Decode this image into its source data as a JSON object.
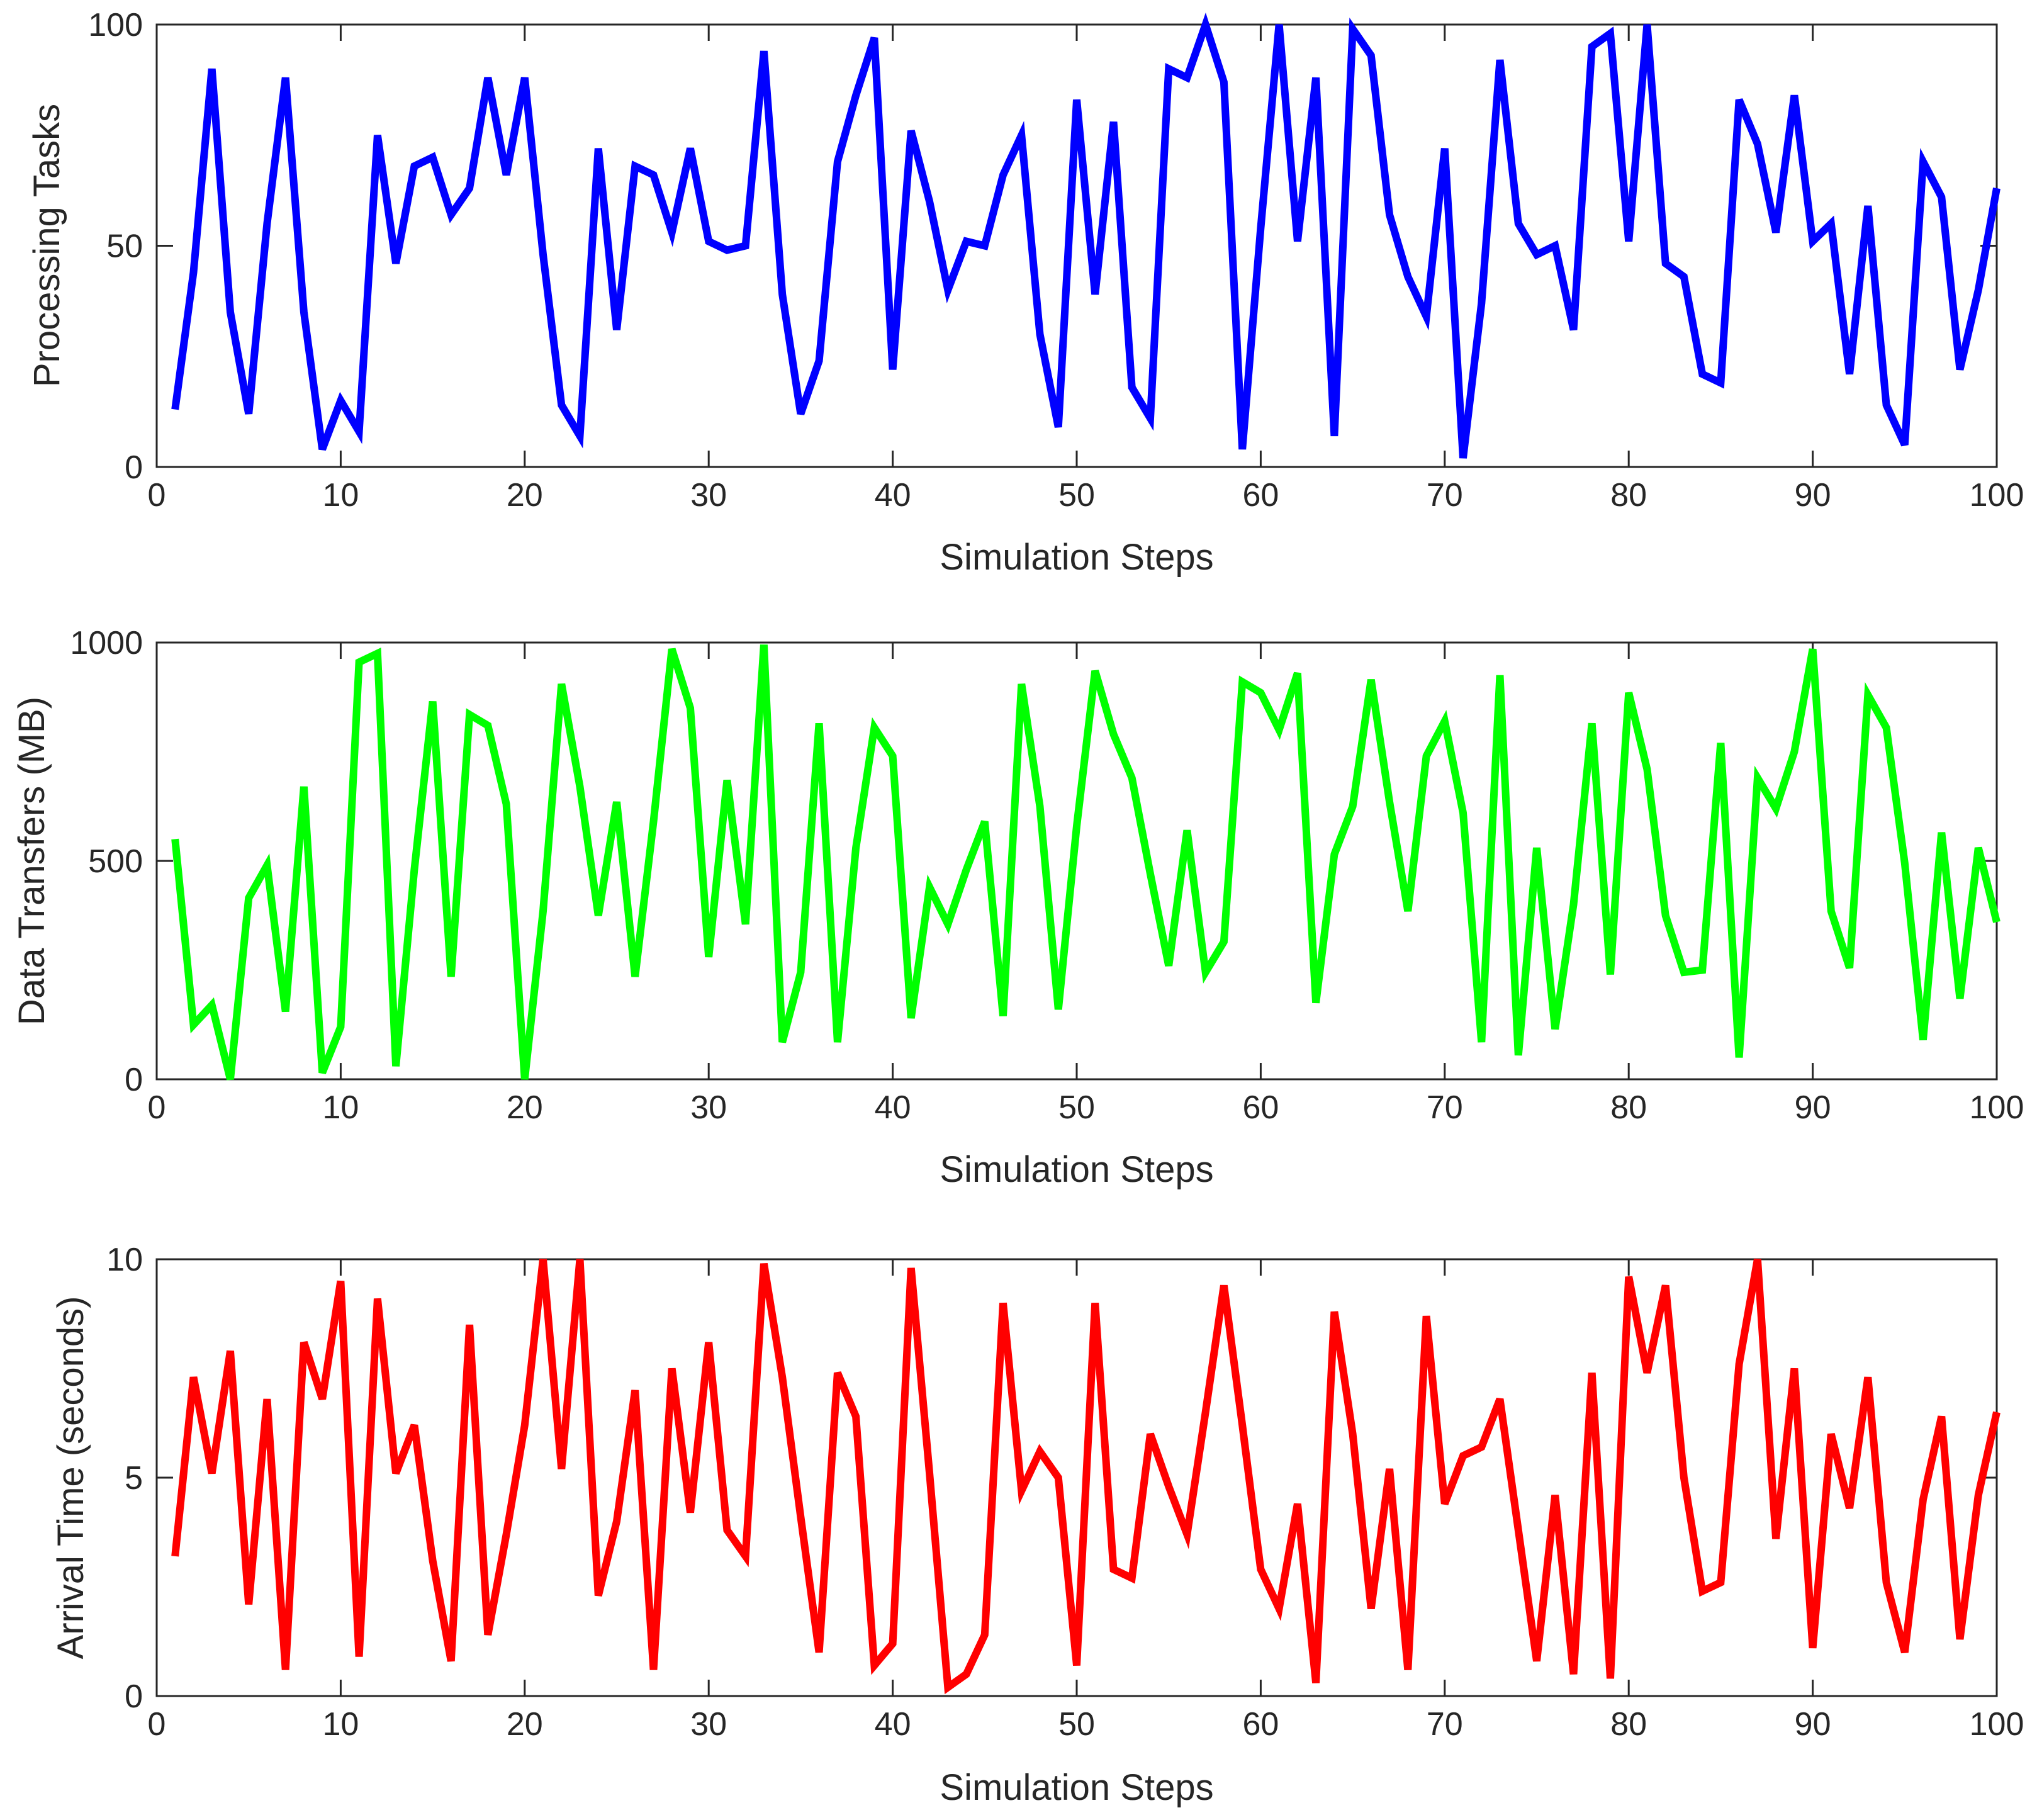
{
  "chart_data": [
    {
      "type": "line",
      "title": "",
      "xlabel": "Simulation Steps",
      "ylabel": "Processing Tasks",
      "xlim": [
        0,
        100
      ],
      "ylim": [
        0,
        100
      ],
      "xticks": [
        0,
        10,
        20,
        30,
        40,
        50,
        60,
        70,
        80,
        90,
        100
      ],
      "yticks": [
        0,
        50,
        100
      ],
      "grid": false,
      "color": "#0000FF",
      "series": [
        {
          "name": "Processing Tasks",
          "x": [
            1,
            2,
            3,
            4,
            5,
            6,
            7,
            8,
            9,
            10,
            11,
            12,
            13,
            14,
            15,
            16,
            17,
            18,
            19,
            20,
            21,
            22,
            23,
            24,
            25,
            26,
            27,
            28,
            29,
            30,
            31,
            32,
            33,
            34,
            35,
            36,
            37,
            38,
            39,
            40,
            41,
            42,
            43,
            44,
            45,
            46,
            47,
            48,
            49,
            50,
            51,
            52,
            53,
            54,
            55,
            56,
            57,
            58,
            59,
            60,
            61,
            62,
            63,
            64,
            65,
            66,
            67,
            68,
            69,
            70,
            71,
            72,
            73,
            74,
            75,
            76,
            77,
            78,
            79,
            80,
            81,
            82,
            83,
            84,
            85,
            86,
            87,
            88,
            89,
            90,
            91,
            92,
            93,
            94,
            95,
            96,
            97,
            98,
            99,
            100
          ],
          "values": [
            13,
            44,
            90,
            35,
            12,
            55,
            88,
            35,
            4,
            15,
            8,
            75,
            46,
            68,
            70,
            57,
            63,
            88,
            66,
            88,
            48,
            14,
            7,
            72,
            31,
            68,
            66,
            53,
            72,
            51,
            49,
            50,
            94,
            39,
            12,
            24,
            69,
            84,
            97,
            22,
            76,
            60,
            40,
            51,
            50,
            66,
            75,
            30,
            9,
            83,
            39,
            78,
            18,
            11,
            90,
            88,
            100,
            87,
            4,
            54,
            100,
            51,
            88,
            7,
            99,
            93,
            57,
            43,
            34,
            72,
            2,
            37,
            92,
            55,
            48,
            50,
            31,
            95,
            98,
            51,
            100,
            46,
            43,
            21,
            19,
            83,
            73,
            53,
            84,
            51,
            55,
            21,
            59,
            14,
            5,
            69,
            61,
            22,
            40,
            63
          ]
        }
      ]
    },
    {
      "type": "line",
      "title": "",
      "xlabel": "Simulation Steps",
      "ylabel": "Data Transfers (MB)",
      "xlim": [
        0,
        100
      ],
      "ylim": [
        0,
        1000
      ],
      "xticks": [
        0,
        10,
        20,
        30,
        40,
        50,
        60,
        70,
        80,
        90,
        100
      ],
      "yticks": [
        0,
        500,
        1000
      ],
      "grid": false,
      "color": "#00FF00",
      "series": [
        {
          "name": "Data Transfers (MB)",
          "x": [
            1,
            2,
            3,
            4,
            5,
            6,
            7,
            8,
            9,
            10,
            11,
            12,
            13,
            14,
            15,
            16,
            17,
            18,
            19,
            20,
            21,
            22,
            23,
            24,
            25,
            26,
            27,
            28,
            29,
            30,
            31,
            32,
            33,
            34,
            35,
            36,
            37,
            38,
            39,
            40,
            41,
            42,
            43,
            44,
            45,
            46,
            47,
            48,
            49,
            50,
            51,
            52,
            53,
            54,
            55,
            56,
            57,
            58,
            59,
            60,
            61,
            62,
            63,
            64,
            65,
            66,
            67,
            68,
            69,
            70,
            71,
            72,
            73,
            74,
            75,
            76,
            77,
            78,
            79,
            80,
            81,
            82,
            83,
            84,
            85,
            86,
            87,
            88,
            89,
            90,
            91,
            92,
            93,
            94,
            95,
            96,
            97,
            98,
            99,
            100
          ],
          "values": [
            550,
            125,
            170,
            0,
            415,
            490,
            155,
            670,
            15,
            120,
            955,
            975,
            30,
            480,
            865,
            235,
            835,
            810,
            630,
            0,
            385,
            905,
            670,
            375,
            635,
            235,
            590,
            985,
            850,
            280,
            685,
            355,
            995,
            85,
            245,
            815,
            85,
            530,
            805,
            740,
            140,
            440,
            355,
            480,
            590,
            145,
            905,
            625,
            160,
            580,
            935,
            790,
            690,
            470,
            260,
            570,
            245,
            315,
            910,
            885,
            800,
            930,
            175,
            515,
            625,
            915,
            635,
            385,
            740,
            820,
            610,
            85,
            925,
            55,
            530,
            115,
            400,
            815,
            240,
            885,
            710,
            375,
            245,
            250,
            770,
            50,
            690,
            620,
            750,
            985,
            385,
            255,
            880,
            805,
            495,
            90,
            565,
            185,
            530,
            360
          ]
        }
      ]
    },
    {
      "type": "line",
      "title": "",
      "xlabel": "Simulation Steps",
      "ylabel": "Arrival Time (seconds)",
      "xlim": [
        0,
        100
      ],
      "ylim": [
        0,
        10
      ],
      "xticks": [
        0,
        10,
        20,
        30,
        40,
        50,
        60,
        70,
        80,
        90,
        100
      ],
      "yticks": [
        0,
        5,
        10
      ],
      "grid": false,
      "color": "#FF0000",
      "series": [
        {
          "name": "Arrival Time (seconds)",
          "x": [
            1,
            2,
            3,
            4,
            5,
            6,
            7,
            8,
            9,
            10,
            11,
            12,
            13,
            14,
            15,
            16,
            17,
            18,
            19,
            20,
            21,
            22,
            23,
            24,
            25,
            26,
            27,
            28,
            29,
            30,
            31,
            32,
            33,
            34,
            35,
            36,
            37,
            38,
            39,
            40,
            41,
            42,
            43,
            44,
            45,
            46,
            47,
            48,
            49,
            50,
            51,
            52,
            53,
            54,
            55,
            56,
            57,
            58,
            59,
            60,
            61,
            62,
            63,
            64,
            65,
            66,
            67,
            68,
            69,
            70,
            71,
            72,
            73,
            74,
            75,
            76,
            77,
            78,
            79,
            80,
            81,
            82,
            83,
            84,
            85,
            86,
            87,
            88,
            89,
            90,
            91,
            92,
            93,
            94,
            95,
            96,
            97,
            98,
            99,
            100
          ],
          "values": [
            3.2,
            7.3,
            5.1,
            7.9,
            2.1,
            6.8,
            0.6,
            8.1,
            6.8,
            9.5,
            0.9,
            9.1,
            5.1,
            6.2,
            3.1,
            0.8,
            8.5,
            1.4,
            3.7,
            6.2,
            10.0,
            5.2,
            10.0,
            2.3,
            4.0,
            7.0,
            0.6,
            7.5,
            4.2,
            8.1,
            3.8,
            3.2,
            9.9,
            7.3,
            4.1,
            1.0,
            7.4,
            6.4,
            0.7,
            1.2,
            9.8,
            5.1,
            0.2,
            0.5,
            1.4,
            9.0,
            4.7,
            5.6,
            5.0,
            0.7,
            9.0,
            2.9,
            2.7,
            6.0,
            4.8,
            3.7,
            6.5,
            9.4,
            6.2,
            2.9,
            2.0,
            4.4,
            0.3,
            8.8,
            6.0,
            2.0,
            5.2,
            0.6,
            8.7,
            4.4,
            5.5,
            5.7,
            6.8,
            3.8,
            0.8,
            4.6,
            0.5,
            7.4,
            0.4,
            9.6,
            7.4,
            9.4,
            5.0,
            2.4,
            2.6,
            7.6,
            10.0,
            3.6,
            7.5,
            1.1,
            6.0,
            4.3,
            7.3,
            2.6,
            1.0,
            4.5,
            6.4,
            1.3,
            4.6,
            6.5
          ]
        }
      ]
    }
  ]
}
